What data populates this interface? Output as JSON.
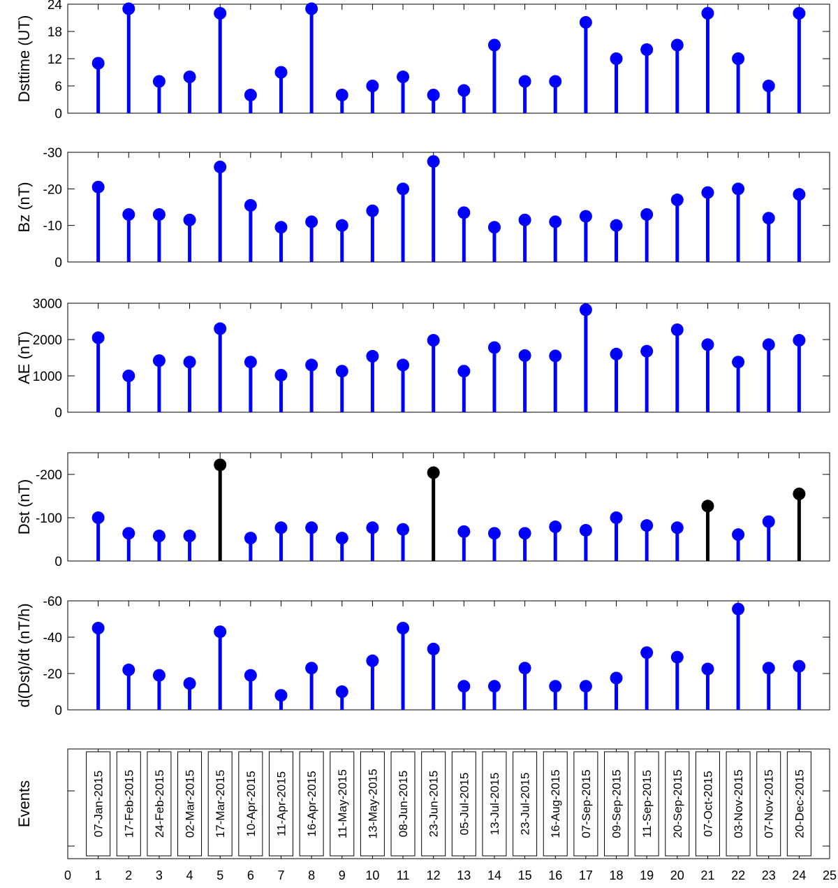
{
  "figure": {
    "x_ticks": [
      "0",
      "1",
      "2",
      "3",
      "4",
      "5",
      "6",
      "7",
      "8",
      "9",
      "10",
      "11",
      "12",
      "13",
      "14",
      "15",
      "16",
      "17",
      "18",
      "19",
      "20",
      "21",
      "22",
      "23",
      "24",
      "25"
    ],
    "xlim": [
      0,
      25
    ]
  },
  "chart_data": [
    {
      "type": "stem",
      "ylabel": "Dsttime (UT)",
      "ylim": [
        0,
        24
      ],
      "reversed": false,
      "yticks": [
        0,
        6,
        12,
        18,
        24
      ],
      "ytick_labels": [
        "0",
        "6",
        "12",
        "18",
        "24"
      ],
      "x": [
        1,
        2,
        3,
        4,
        5,
        6,
        7,
        8,
        9,
        10,
        11,
        12,
        13,
        14,
        15,
        16,
        17,
        18,
        19,
        20,
        21,
        22,
        23,
        24
      ],
      "values": [
        11,
        23,
        7,
        8,
        22,
        4,
        9,
        23,
        4,
        6,
        8,
        4,
        5,
        15,
        7,
        7,
        20,
        12,
        14,
        15,
        22,
        12,
        6,
        22
      ],
      "color": "#0000ff",
      "highlight": [],
      "highlight_color": "#000000"
    },
    {
      "type": "stem",
      "ylabel": "Bz (nT)",
      "ylim": [
        -30,
        0
      ],
      "reversed": true,
      "yticks": [
        -30,
        -20,
        -10,
        0
      ],
      "ytick_labels": [
        "-30",
        "-20",
        "-10",
        "0"
      ],
      "x": [
        1,
        2,
        3,
        4,
        5,
        6,
        7,
        8,
        9,
        10,
        11,
        12,
        13,
        14,
        15,
        16,
        17,
        18,
        19,
        20,
        21,
        22,
        23,
        24
      ],
      "values": [
        -20.5,
        -13,
        -13,
        -11.5,
        -26,
        -15.5,
        -9.5,
        -11,
        -10,
        -14,
        -20,
        -27.5,
        -13.5,
        -9.5,
        -11.5,
        -11,
        -12.5,
        -10,
        -13,
        -17,
        -19,
        -20,
        -12,
        -18.5
      ],
      "color": "#0000ff",
      "highlight": [],
      "highlight_color": "#000000"
    },
    {
      "type": "stem",
      "ylabel": "AE (nT)",
      "ylim": [
        0,
        3000
      ],
      "reversed": false,
      "yticks": [
        0,
        1000,
        2000,
        3000
      ],
      "ytick_labels": [
        "0",
        "1000",
        "2000",
        "3000"
      ],
      "x": [
        1,
        2,
        3,
        4,
        5,
        6,
        7,
        8,
        9,
        10,
        11,
        12,
        13,
        14,
        15,
        16,
        17,
        18,
        19,
        20,
        21,
        22,
        23,
        24
      ],
      "values": [
        2050,
        1000,
        1420,
        1380,
        2300,
        1380,
        1020,
        1300,
        1130,
        1540,
        1300,
        1980,
        1130,
        1780,
        1560,
        1550,
        2820,
        1600,
        1680,
        2270,
        1860,
        1380,
        1860,
        1980
      ],
      "color": "#0000ff",
      "highlight": [],
      "highlight_color": "#000000"
    },
    {
      "type": "stem",
      "ylabel": "Dst (nT)",
      "ylim": [
        -250,
        0
      ],
      "reversed": true,
      "yticks": [
        -200,
        -100,
        0
      ],
      "ytick_labels": [
        "-200",
        "-100",
        "0"
      ],
      "x": [
        1,
        2,
        3,
        4,
        5,
        6,
        7,
        8,
        9,
        10,
        11,
        12,
        13,
        14,
        15,
        16,
        17,
        18,
        19,
        20,
        21,
        22,
        23,
        24
      ],
      "values": [
        -100,
        -64,
        -58,
        -58,
        -222,
        -53,
        -77,
        -77,
        -53,
        -77,
        -73,
        -204,
        -68,
        -64,
        -64,
        -79,
        -71,
        -100,
        -82,
        -77,
        -127,
        -61,
        -91,
        -155
      ],
      "color": "#0000ff",
      "highlight": [
        5,
        12,
        21,
        24
      ],
      "highlight_color": "#000000"
    },
    {
      "type": "stem",
      "ylabel": "d(Dst)/dt (nT/h)",
      "ylim": [
        -60,
        0
      ],
      "reversed": true,
      "yticks": [
        -60,
        -40,
        -20,
        0
      ],
      "ytick_labels": [
        "-60",
        "-40",
        "-20",
        "0"
      ],
      "x": [
        1,
        2,
        3,
        4,
        5,
        6,
        7,
        8,
        9,
        10,
        11,
        12,
        13,
        14,
        15,
        16,
        17,
        18,
        19,
        20,
        21,
        22,
        23,
        24
      ],
      "values": [
        -45,
        -22,
        -19,
        -14.5,
        -43,
        -19,
        -8,
        -23,
        -10,
        -27,
        -45,
        -33.5,
        -13,
        -13,
        -23,
        -13,
        -13,
        -17.5,
        -31.5,
        -29,
        -22.5,
        -55.5,
        -23,
        -24
      ],
      "color": "#0000ff",
      "highlight": [],
      "highlight_color": "#000000"
    },
    {
      "type": "table",
      "ylabel": "Events",
      "x": [
        1,
        2,
        3,
        4,
        5,
        6,
        7,
        8,
        9,
        10,
        11,
        12,
        13,
        14,
        15,
        16,
        17,
        18,
        19,
        20,
        21,
        22,
        23,
        24
      ],
      "labels": [
        "07-Jan-2015",
        "17-Feb-2015",
        "24-Feb-2015",
        "02-Mar-2015",
        "17-Mar-2015",
        "10-Apr-2015",
        "11-Apr-2015",
        "16-Apr-2015",
        "11-May-2015",
        "13-May-2015",
        "08-Jun-2015",
        "23-Jun-2015",
        "05-Jul-2015",
        "13-Jul-2015",
        "23-Jul-2015",
        "16-Aug-2015",
        "07-Sep-2015",
        "09-Sep-2015",
        "11-Sep-2015",
        "20-Sep-2015",
        "07-Oct-2015",
        "03-Nov-2015",
        "07-Nov-2015",
        "20-Dec-2015"
      ]
    }
  ]
}
